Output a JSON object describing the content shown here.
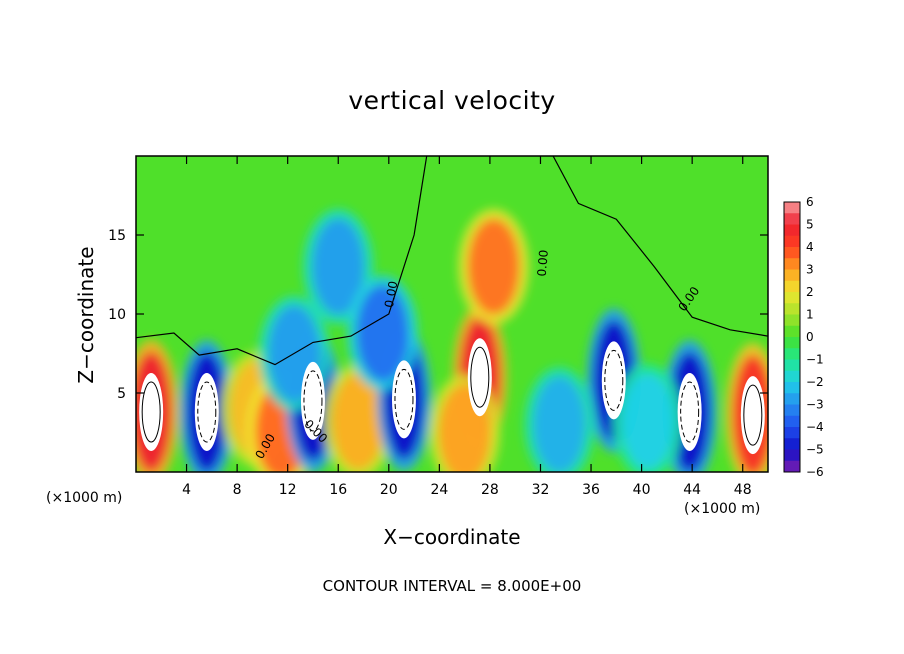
{
  "chart_data": {
    "type": "heatmap",
    "title": "vertical velocity",
    "xlabel": "X−coordinate",
    "ylabel": "Z−coordinate",
    "x_unit_left": "(×1000 m)",
    "x_unit_right": "(×1000 m)",
    "xlim": [
      0,
      50
    ],
    "ylim": [
      0,
      20
    ],
    "x_ticks": [
      4,
      8,
      12,
      16,
      20,
      24,
      28,
      32,
      36,
      40,
      44,
      48
    ],
    "y_ticks": [
      5,
      10,
      15
    ],
    "colorbar": {
      "range": [
        -6,
        6
      ],
      "labels": [
        "6",
        "5",
        "4",
        "3",
        "2",
        "1",
        "0",
        "−1",
        "−2",
        "−3",
        "−4",
        "−5",
        "−6"
      ]
    },
    "contour_labels": [
      "0.00",
      "0.00",
      "0.00",
      "0.00",
      "0.00"
    ],
    "contour_note": "CONTOUR INTERVAL = 8.000E+00",
    "cells": [
      {
        "x": 1.2,
        "z": 3.8,
        "w": 5
      },
      {
        "x": 5.6,
        "z": 3.8,
        "w": -5
      },
      {
        "x": 9.5,
        "z": 4.0,
        "w": 2.6
      },
      {
        "x": 11.5,
        "z": 2.6,
        "w": 3.6
      },
      {
        "x": 14.0,
        "z": 4.5,
        "w": -5
      },
      {
        "x": 17.6,
        "z": 3.2,
        "w": 2.8
      },
      {
        "x": 21.2,
        "z": 4.6,
        "w": -5
      },
      {
        "x": 27.2,
        "z": 6.0,
        "w": 5
      },
      {
        "x": 28.3,
        "z": 13.0,
        "w": 3.5
      },
      {
        "x": 37.8,
        "z": 5.8,
        "w": -5
      },
      {
        "x": 43.8,
        "z": 3.8,
        "w": -5
      },
      {
        "x": 48.8,
        "z": 3.6,
        "w": 4.5
      },
      {
        "x": 16.0,
        "z": 13.0,
        "w": -2.8
      },
      {
        "x": 19.5,
        "z": 8.8,
        "w": -3.5
      },
      {
        "x": 12.5,
        "z": 7.5,
        "w": -2.8
      },
      {
        "x": 26.0,
        "z": 2.5,
        "w": 3.0
      },
      {
        "x": 33.5,
        "z": 3.0,
        "w": -2.5
      },
      {
        "x": 40.5,
        "z": 3.2,
        "w": -2.0
      }
    ]
  }
}
